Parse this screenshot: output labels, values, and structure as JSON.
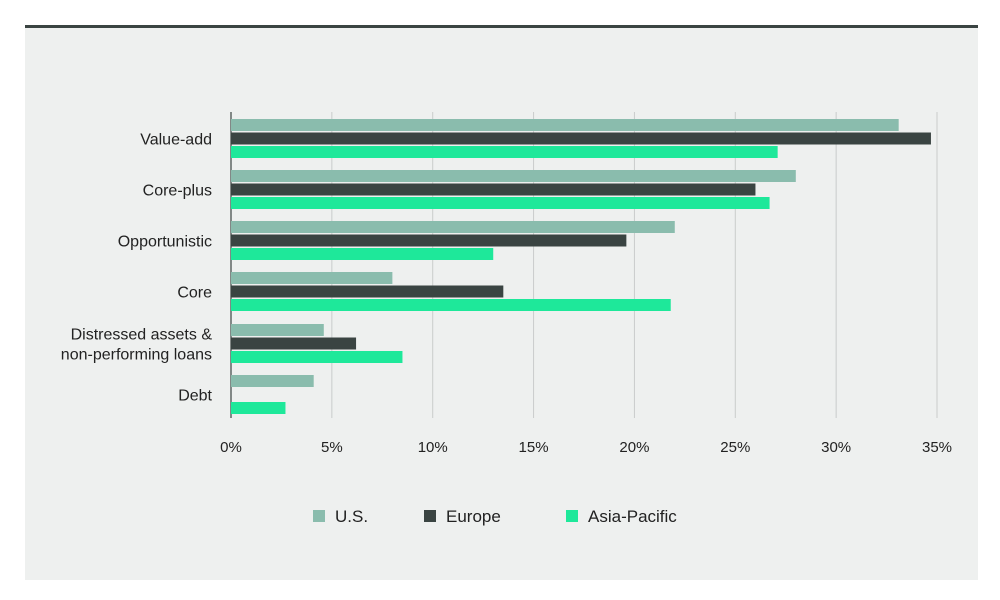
{
  "chart_data": {
    "type": "bar",
    "orientation": "horizontal",
    "categories": [
      [
        "Value-add"
      ],
      [
        "Core-plus"
      ],
      [
        "Opportunistic"
      ],
      [
        "Core"
      ],
      [
        "Distressed assets &",
        "non-performing loans"
      ],
      [
        "Debt"
      ]
    ],
    "series": [
      {
        "name": "U.S.",
        "color": "#8abcad",
        "values": [
          33.1,
          28.0,
          22.0,
          8.0,
          4.6,
          4.1
        ]
      },
      {
        "name": "Europe",
        "color": "#3a4442",
        "values": [
          34.7,
          26.0,
          19.6,
          13.5,
          6.2,
          0
        ]
      },
      {
        "name": "Asia-Pacific",
        "color": "#1ee89a",
        "values": [
          27.1,
          26.7,
          13.0,
          21.8,
          8.5,
          2.7
        ]
      }
    ],
    "xlim": [
      0,
      35
    ],
    "xticks": [
      "0%",
      "5%",
      "10%",
      "15%",
      "20%",
      "25%",
      "30%",
      "35%"
    ],
    "grid": true,
    "legend_position": "bottom"
  }
}
